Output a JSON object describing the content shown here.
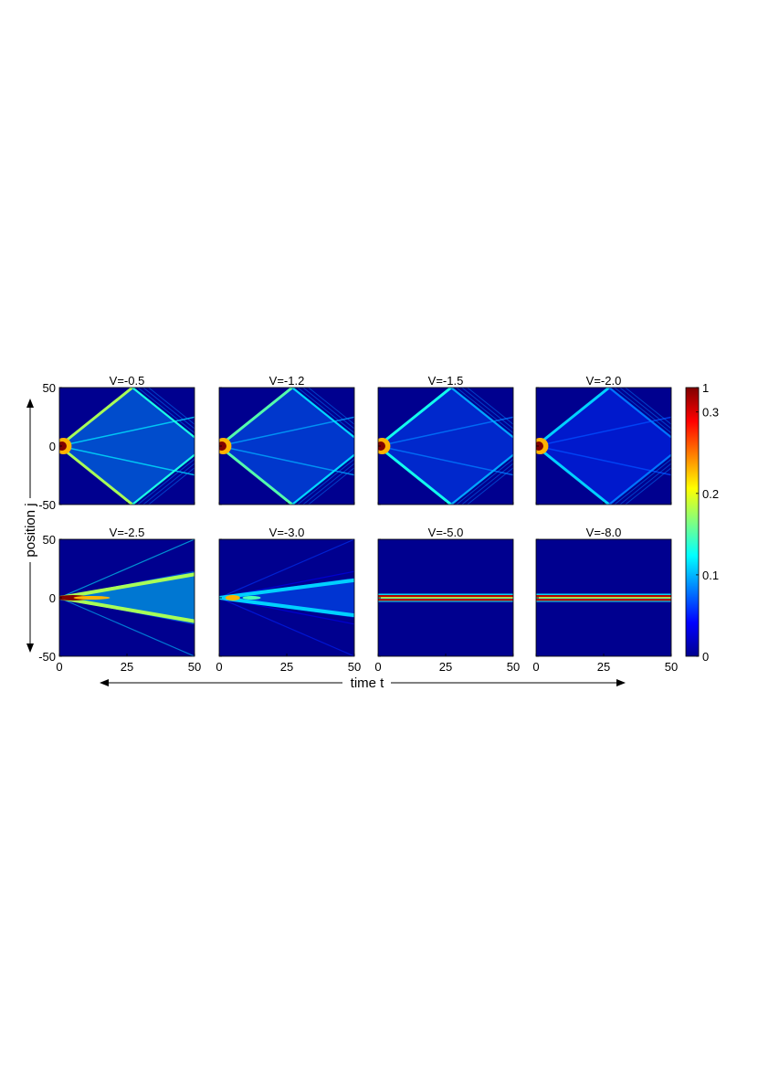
{
  "chart_data": {
    "type": "heatmap",
    "xlabel": "time t",
    "ylabel": "position j",
    "xlim": [
      0,
      50
    ],
    "ylim": [
      -50,
      50
    ],
    "x_ticks": [
      "0",
      "25",
      "50"
    ],
    "y_ticks": [
      "50",
      "0",
      "-50"
    ],
    "colormap": "jet",
    "colorbar": {
      "ticks": [
        "1",
        "0.3",
        "0.2",
        "0.1",
        "0"
      ],
      "values": [
        0.33,
        0.3,
        0.2,
        0.1,
        0
      ]
    },
    "panels": [
      {
        "title": "V=-0.5",
        "profile": "ballistic-reflect",
        "speed": 1.85,
        "intensity": 1.0
      },
      {
        "title": "V=-1.2",
        "profile": "ballistic-reflect",
        "speed": 1.85,
        "intensity": 0.8
      },
      {
        "title": "V=-1.5",
        "profile": "ballistic-reflect",
        "speed": 1.85,
        "intensity": 0.65
      },
      {
        "title": "V=-2.0",
        "profile": "ballistic-reflect",
        "speed": 1.85,
        "intensity": 0.5
      },
      {
        "title": "V=-2.5",
        "profile": "bound-spread",
        "speed": 0.4,
        "intensity": 1.0
      },
      {
        "title": "V=-3.0",
        "profile": "bound-spread",
        "speed": 0.3,
        "intensity": 0.5
      },
      {
        "title": "V=-5.0",
        "profile": "localized",
        "speed": 0.0,
        "intensity": 1.0
      },
      {
        "title": "V=-8.0",
        "profile": "localized",
        "speed": 0.0,
        "intensity": 1.0
      }
    ]
  }
}
